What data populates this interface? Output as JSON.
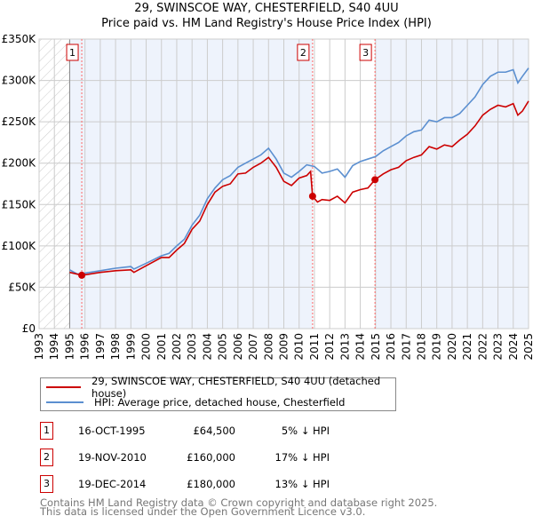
{
  "chart_data": {
    "type": "line",
    "title": "29, SWINSCOE WAY, CHESTERFIELD, S40 4UU",
    "subtitle": "Price paid vs. HM Land Registry's House Price Index (HPI)",
    "xlim": [
      1993,
      2025
    ],
    "ylim": [
      0,
      350000
    ],
    "x_ticks": [
      "1993",
      "1994",
      "1995",
      "1996",
      "1997",
      "1998",
      "1999",
      "2000",
      "2001",
      "2002",
      "2003",
      "2004",
      "2005",
      "2006",
      "2007",
      "2008",
      "2009",
      "2010",
      "2011",
      "2012",
      "2013",
      "2014",
      "2015",
      "2016",
      "2017",
      "2018",
      "2019",
      "2020",
      "2021",
      "2022",
      "2023",
      "2024",
      "2025"
    ],
    "y_ticks": [
      {
        "v": 0,
        "label": "£0"
      },
      {
        "v": 50000,
        "label": "£50K"
      },
      {
        "v": 100000,
        "label": "£100K"
      },
      {
        "v": 150000,
        "label": "£150K"
      },
      {
        "v": 200000,
        "label": "£200K"
      },
      {
        "v": 250000,
        "label": "£250K"
      },
      {
        "v": 300000,
        "label": "£300K"
      },
      {
        "v": 350000,
        "label": "£350K"
      }
    ],
    "grid": true,
    "colors": {
      "property": "#cc0000",
      "hpi": "#5b8fd0",
      "shade": "#eef3fc"
    },
    "series": [
      {
        "name": "29, SWINSCOE WAY, CHESTERFIELD, S40 4UU (detached house)",
        "key": "property",
        "x": [
          1995,
          1995.8,
          1996,
          1997,
          1998,
          1999,
          1999.2,
          2000,
          2001,
          2001.5,
          2002,
          2002.5,
          2003,
          2003.5,
          2004,
          2004.5,
          2005,
          2005.5,
          2006,
          2006.5,
          2007,
          2007.5,
          2008,
          2008.5,
          2009,
          2009.5,
          2010,
          2010.5,
          2010.75,
          2010.88,
          2011.2,
          2011.5,
          2012,
          2012.5,
          2013,
          2013.5,
          2014,
          2014.5,
          2014.96,
          2015.5,
          2016,
          2016.5,
          2017,
          2017.5,
          2018,
          2018.5,
          2019,
          2019.5,
          2020,
          2020.5,
          2021,
          2021.5,
          2022,
          2022.5,
          2023,
          2023.5,
          2024,
          2024.3,
          2024.6,
          2025
        ],
        "y": [
          68000,
          64500,
          65000,
          68000,
          70000,
          71000,
          68000,
          76000,
          86000,
          86000,
          95000,
          103000,
          120000,
          130000,
          150000,
          165000,
          172000,
          175000,
          187000,
          188000,
          195000,
          200000,
          207000,
          195000,
          178000,
          173000,
          182000,
          185000,
          190000,
          160000,
          153000,
          156000,
          155000,
          160000,
          152000,
          165000,
          168000,
          170000,
          180000,
          187000,
          192000,
          195000,
          203000,
          207000,
          210000,
          220000,
          217000,
          222000,
          220000,
          228000,
          235000,
          245000,
          258000,
          265000,
          270000,
          268000,
          272000,
          258000,
          263000,
          275000
        ]
      },
      {
        "name": "HPI: Average price, detached house, Chesterfield",
        "key": "hpi",
        "x": [
          1995,
          1995.5,
          1996,
          1997,
          1998,
          1999,
          1999.2,
          2000,
          2001,
          2001.5,
          2002,
          2002.5,
          2003,
          2003.5,
          2004,
          2004.5,
          2005,
          2005.5,
          2006,
          2006.5,
          2007,
          2007.5,
          2008,
          2008.5,
          2009,
          2009.5,
          2010,
          2010.5,
          2011,
          2011.5,
          2012,
          2012.5,
          2013,
          2013.5,
          2014,
          2014.5,
          2015,
          2015.5,
          2016,
          2016.5,
          2017,
          2017.5,
          2018,
          2018.5,
          2019,
          2019.5,
          2020,
          2020.5,
          2021,
          2021.5,
          2022,
          2022.5,
          2023,
          2023.5,
          2024,
          2024.3,
          2024.6,
          2025
        ],
        "y": [
          71000,
          66000,
          67000,
          70000,
          73000,
          75000,
          72000,
          79000,
          88000,
          91000,
          100000,
          108000,
          125000,
          137000,
          157000,
          170000,
          180000,
          185000,
          195000,
          200000,
          205000,
          210000,
          218000,
          205000,
          188000,
          183000,
          190000,
          198000,
          196000,
          188000,
          190000,
          193000,
          183000,
          197000,
          202000,
          205000,
          208000,
          215000,
          220000,
          225000,
          233000,
          238000,
          240000,
          252000,
          250000,
          255000,
          255000,
          260000,
          270000,
          280000,
          295000,
          305000,
          310000,
          310000,
          313000,
          297000,
          305000,
          315000
        ]
      }
    ],
    "sales": [
      {
        "id": "1",
        "x": 1995.79,
        "y": 64500,
        "date": "16-OCT-1995",
        "price": "£64,500",
        "hpi": "5% ↓ HPI"
      },
      {
        "id": "2",
        "x": 2010.88,
        "y": 160000,
        "date": "19-NOV-2010",
        "price": "£160,000",
        "hpi": "17% ↓ HPI"
      },
      {
        "id": "3",
        "x": 2014.96,
        "y": 180000,
        "date": "19-DEC-2014",
        "price": "£180,000",
        "hpi": "13% ↓ HPI"
      }
    ]
  },
  "legend": {
    "property": "29, SWINSCOE WAY, CHESTERFIELD, S40 4UU (detached house)",
    "hpi": "HPI: Average price, detached house, Chesterfield"
  },
  "footer": {
    "line1": "Contains HM Land Registry data © Crown copyright and database right 2025.",
    "line2": "This data is licensed under the Open Government Licence v3.0."
  }
}
